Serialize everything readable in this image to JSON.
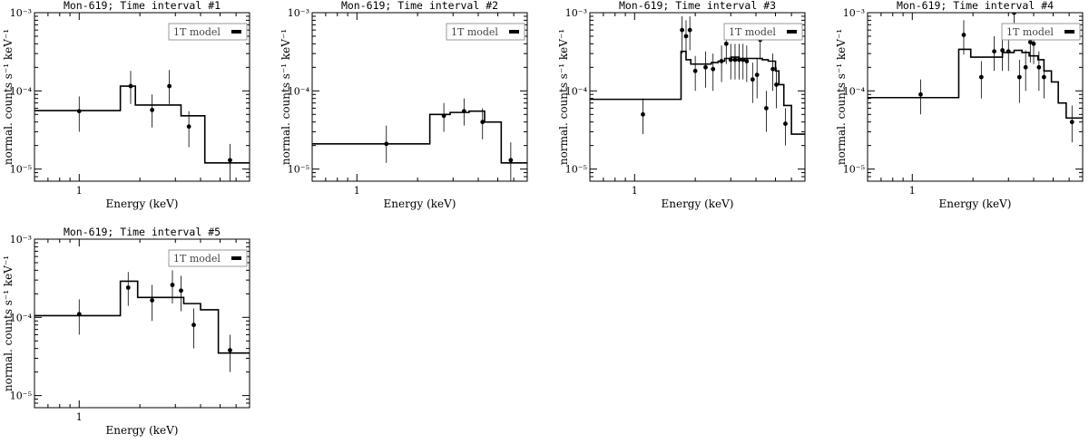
{
  "chart_data": [
    {
      "type": "scatter",
      "title": "Mon-619; Time interval #1",
      "xlabel": "Energy (keV)",
      "ylabel": "normal. counts s⁻¹ keV⁻¹",
      "xscale": "log",
      "yscale": "log",
      "xlim": [
        0.6,
        7.0
      ],
      "ylim": [
        7e-06,
        0.001
      ],
      "x_ticks": [
        "1"
      ],
      "y_ticks": [
        "10⁻⁵",
        "10⁻⁴",
        "10⁻³"
      ],
      "legend": {
        "label": "1T model",
        "position": "top-right"
      },
      "model_label": "1T model",
      "model_step": {
        "edges": [
          0.6,
          1.6,
          1.9,
          2.5,
          3.2,
          4.2,
          7.0
        ],
        "values": [
          5.6e-05,
          0.000115,
          6.6e-05,
          6.6e-05,
          4.8e-05,
          1.2e-05
        ]
      },
      "points": [
        {
          "x": 1.0,
          "y": 5.5e-05,
          "ylo": 3e-05,
          "yhi": 8.5e-05
        },
        {
          "x": 1.8,
          "y": 0.000115,
          "ylo": 6.8e-05,
          "yhi": 0.00018
        },
        {
          "x": 2.3,
          "y": 5.7e-05,
          "ylo": 3.4e-05,
          "yhi": 9e-05
        },
        {
          "x": 2.8,
          "y": 0.000115,
          "ylo": 6.8e-05,
          "yhi": 0.000185
        },
        {
          "x": 3.5,
          "y": 3.5e-05,
          "ylo": 1.9e-05,
          "yhi": 5.5e-05
        },
        {
          "x": 5.6,
          "y": 1.3e-05,
          "ylo": 7e-06,
          "yhi": 2.1e-05
        }
      ]
    },
    {
      "type": "scatter",
      "title": "Mon-619; Time interval #2",
      "xlabel": "Energy (keV)",
      "ylabel": "normal. counts s⁻¹ keV⁻¹",
      "xscale": "log",
      "yscale": "log",
      "xlim": [
        0.6,
        7.0
      ],
      "ylim": [
        7e-06,
        0.001
      ],
      "x_ticks": [
        "1"
      ],
      "y_ticks": [
        "10⁻⁵",
        "10⁻⁴",
        "10⁻³"
      ],
      "legend": {
        "label": "1T model",
        "position": "top-right"
      },
      "model_label": "1T model",
      "model_step": {
        "edges": [
          0.6,
          2.3,
          2.9,
          3.6,
          4.3,
          5.2,
          7.0
        ],
        "values": [
          2.1e-05,
          5e-05,
          5.3e-05,
          5.5e-05,
          4e-05,
          1.2e-05
        ]
      },
      "points": [
        {
          "x": 1.4,
          "y": 2.1e-05,
          "ylo": 1.2e-05,
          "yhi": 3.6e-05
        },
        {
          "x": 2.7,
          "y": 4.8e-05,
          "ylo": 3e-05,
          "yhi": 7e-05
        },
        {
          "x": 3.4,
          "y": 5.5e-05,
          "ylo": 3.6e-05,
          "yhi": 8e-05
        },
        {
          "x": 4.2,
          "y": 4e-05,
          "ylo": 2.4e-05,
          "yhi": 6e-05
        },
        {
          "x": 5.8,
          "y": 1.3e-05,
          "ylo": 7e-06,
          "yhi": 2.2e-05
        }
      ]
    },
    {
      "type": "scatter",
      "title": "Mon-619; Time interval #3",
      "xlabel": "Energy (keV)",
      "ylabel": "normal. counts s⁻¹ keV⁻¹",
      "xscale": "log",
      "yscale": "log",
      "xlim": [
        0.6,
        7.0
      ],
      "ylim": [
        7e-06,
        0.001
      ],
      "x_ticks": [
        "1"
      ],
      "y_ticks": [
        "10⁻⁵",
        "10⁻⁴",
        "10⁻³"
      ],
      "legend": {
        "label": "1T model",
        "position": "top-right"
      },
      "model_label": "1T model",
      "model_step": {
        "edges": [
          0.6,
          1.7,
          1.8,
          1.9,
          2.1,
          2.4,
          2.6,
          2.8,
          3.0,
          3.3,
          3.6,
          3.9,
          4.3,
          4.6,
          5.0,
          5.2,
          5.5,
          6.0,
          7.0
        ],
        "values": [
          7.8e-05,
          0.00032,
          0.00025,
          0.00022,
          0.00022,
          0.00023,
          0.00024,
          0.00026,
          0.00027,
          0.00026,
          0.00026,
          0.00026,
          0.00025,
          0.00024,
          0.00018,
          0.00012,
          6.5e-05,
          2.8e-05
        ]
      },
      "points": [
        {
          "x": 1.1,
          "y": 5e-05,
          "ylo": 2.8e-05,
          "yhi": 8e-05
        },
        {
          "x": 1.72,
          "y": 0.0006,
          "ylo": 0.0003,
          "yhi": 0.0009
        },
        {
          "x": 1.8,
          "y": 0.0005,
          "ylo": 0.00028,
          "yhi": 0.0008
        },
        {
          "x": 1.88,
          "y": 0.0006,
          "ylo": 0.00033,
          "yhi": 0.0009
        },
        {
          "x": 2.0,
          "y": 0.00018,
          "ylo": 0.0001,
          "yhi": 0.00028
        },
        {
          "x": 2.25,
          "y": 0.0002,
          "ylo": 0.00011,
          "yhi": 0.00032
        },
        {
          "x": 2.45,
          "y": 0.00019,
          "ylo": 0.0001,
          "yhi": 0.0003
        },
        {
          "x": 2.7,
          "y": 0.00024,
          "ylo": 0.00013,
          "yhi": 0.00038
        },
        {
          "x": 2.85,
          "y": 0.0004,
          "ylo": 0.00022,
          "yhi": 0.00062
        },
        {
          "x": 3.0,
          "y": 0.00025,
          "ylo": 0.00014,
          "yhi": 0.0004
        },
        {
          "x": 3.15,
          "y": 0.00025,
          "ylo": 0.00014,
          "yhi": 0.0004
        },
        {
          "x": 3.3,
          "y": 0.00025,
          "ylo": 0.00014,
          "yhi": 0.0004
        },
        {
          "x": 3.45,
          "y": 0.00025,
          "ylo": 0.00014,
          "yhi": 0.0004
        },
        {
          "x": 3.6,
          "y": 0.00024,
          "ylo": 0.00013,
          "yhi": 0.00038
        },
        {
          "x": 3.85,
          "y": 0.00014,
          "ylo": 7e-05,
          "yhi": 0.00023
        },
        {
          "x": 4.05,
          "y": 0.00016,
          "ylo": 8e-05,
          "yhi": 0.00026
        },
        {
          "x": 4.2,
          "y": 0.00045,
          "ylo": 0.00025,
          "yhi": 0.0007
        },
        {
          "x": 4.5,
          "y": 6e-05,
          "ylo": 3e-05,
          "yhi": 0.0001
        },
        {
          "x": 4.85,
          "y": 0.00019,
          "ylo": 0.0001,
          "yhi": 0.0003
        },
        {
          "x": 5.05,
          "y": 0.00012,
          "ylo": 6e-05,
          "yhi": 0.0002
        },
        {
          "x": 5.6,
          "y": 3.8e-05,
          "ylo": 2e-05,
          "yhi": 6e-05
        }
      ]
    },
    {
      "type": "scatter",
      "title": "Mon-619; Time interval #4",
      "xlabel": "Energy (keV)",
      "ylabel": "normal. counts s⁻¹ keV⁻¹",
      "xscale": "log",
      "yscale": "log",
      "xlim": [
        0.6,
        7.0
      ],
      "ylim": [
        7e-06,
        0.001
      ],
      "x_ticks": [
        "1"
      ],
      "y_ticks": [
        "10⁻⁵",
        "10⁻⁴",
        "10⁻³"
      ],
      "legend": {
        "label": "1T model",
        "position": "top-right"
      },
      "model_label": "1T model",
      "model_step": {
        "edges": [
          0.6,
          1.7,
          1.95,
          2.4,
          2.8,
          3.2,
          3.5,
          3.8,
          4.2,
          4.5,
          4.9,
          5.3,
          5.8,
          7.0
        ],
        "values": [
          8.2e-05,
          0.00034,
          0.00027,
          0.00027,
          0.00031,
          0.00033,
          0.00031,
          0.00028,
          0.00025,
          0.00018,
          0.00013,
          7e-05,
          4.5e-05
        ]
      },
      "points": [
        {
          "x": 1.1,
          "y": 9e-05,
          "ylo": 5e-05,
          "yhi": 0.00014
        },
        {
          "x": 1.8,
          "y": 0.00052,
          "ylo": 0.00029,
          "yhi": 0.0008
        },
        {
          "x": 2.2,
          "y": 0.00015,
          "ylo": 8e-05,
          "yhi": 0.00024
        },
        {
          "x": 2.55,
          "y": 0.00032,
          "ylo": 0.00018,
          "yhi": 0.0005
        },
        {
          "x": 2.8,
          "y": 0.00033,
          "ylo": 0.00018,
          "yhi": 0.00052
        },
        {
          "x": 3.0,
          "y": 0.00032,
          "ylo": 0.00018,
          "yhi": 0.0005
        },
        {
          "x": 3.2,
          "y": 0.001,
          "ylo": 0.0006,
          "yhi": 0.001
        },
        {
          "x": 3.4,
          "y": 0.00015,
          "ylo": 7e-05,
          "yhi": 0.00025
        },
        {
          "x": 3.65,
          "y": 0.0002,
          "ylo": 0.0001,
          "yhi": 0.00033
        },
        {
          "x": 3.85,
          "y": 0.00042,
          "ylo": 0.00023,
          "yhi": 0.00065
        },
        {
          "x": 4.0,
          "y": 0.0004,
          "ylo": 0.00022,
          "yhi": 0.00062
        },
        {
          "x": 4.25,
          "y": 0.0002,
          "ylo": 0.0001,
          "yhi": 0.00032
        },
        {
          "x": 4.5,
          "y": 0.00015,
          "ylo": 8e-05,
          "yhi": 0.00024
        },
        {
          "x": 6.2,
          "y": 4e-05,
          "ylo": 2.2e-05,
          "yhi": 6.5e-05
        }
      ]
    },
    {
      "type": "scatter",
      "title": "Mon-619; Time interval #5",
      "xlabel": "Energy (keV)",
      "ylabel": "normal. counts s⁻¹ keV⁻¹",
      "xscale": "log",
      "yscale": "log",
      "xlim": [
        0.6,
        7.0
      ],
      "ylim": [
        7e-06,
        0.001
      ],
      "x_ticks": [
        "1"
      ],
      "y_ticks": [
        "10⁻⁵",
        "10⁻⁴",
        "10⁻³"
      ],
      "legend": {
        "label": "1T model",
        "position": "top-right"
      },
      "model_label": "1T model",
      "model_step": {
        "edges": [
          0.6,
          1.6,
          1.95,
          2.6,
          3.3,
          4.0,
          4.9,
          7.0
        ],
        "values": [
          0.000105,
          0.00029,
          0.00018,
          0.00018,
          0.00015,
          0.000125,
          3.5e-05
        ]
      },
      "points": [
        {
          "x": 1.0,
          "y": 0.00011,
          "ylo": 6e-05,
          "yhi": 0.00017
        },
        {
          "x": 1.75,
          "y": 0.00024,
          "ylo": 0.00014,
          "yhi": 0.00038
        },
        {
          "x": 2.3,
          "y": 0.000165,
          "ylo": 9e-05,
          "yhi": 0.00026
        },
        {
          "x": 2.9,
          "y": 0.00026,
          "ylo": 0.00015,
          "yhi": 0.0004
        },
        {
          "x": 3.2,
          "y": 0.00022,
          "ylo": 0.00012,
          "yhi": 0.00034
        },
        {
          "x": 3.7,
          "y": 8e-05,
          "ylo": 4e-05,
          "yhi": 0.00013
        },
        {
          "x": 5.6,
          "y": 3.8e-05,
          "ylo": 2e-05,
          "yhi": 6e-05
        }
      ]
    }
  ]
}
